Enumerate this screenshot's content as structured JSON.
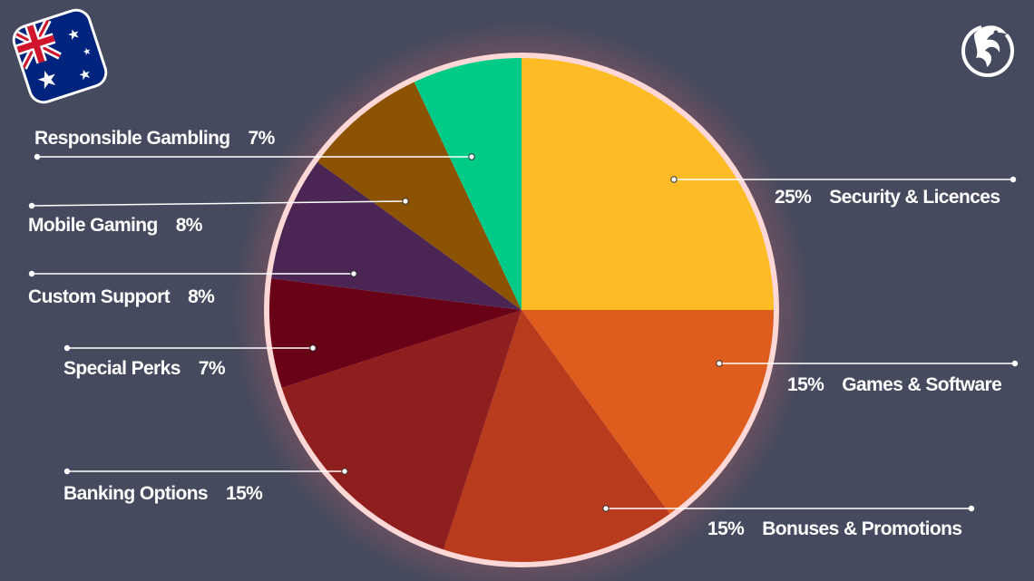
{
  "chart_data": {
    "type": "pie",
    "slices": [
      {
        "label": "Security & Licences",
        "value": 25,
        "pct_label": "25%",
        "color": "#fdbb26"
      },
      {
        "label": "Games & Software",
        "value": 15,
        "pct_label": "15%",
        "color": "#de5c1e"
      },
      {
        "label": "Bonuses & Promotions",
        "value": 15,
        "pct_label": "15%",
        "color": "#b83b1e"
      },
      {
        "label": "Banking Options",
        "value": 15,
        "pct_label": "15%",
        "color": "#8f1e1e"
      },
      {
        "label": "Special Perks",
        "value": 7,
        "pct_label": "7%",
        "color": "#690117"
      },
      {
        "label": "Custom Support",
        "value": 8,
        "pct_label": "8%",
        "color": "#4b2655"
      },
      {
        "label": "Mobile Gaming",
        "value": 8,
        "pct_label": "8%",
        "color": "#8b5201"
      },
      {
        "label": "Responsible Gambling",
        "value": 7,
        "pct_label": "7%",
        "color": "#00ca88"
      }
    ],
    "start": "12 o'clock",
    "direction": "clockwise",
    "rim_color": "#fdd8d6",
    "background": "#464a5e"
  },
  "header": {
    "flag_icon": "australia-flag-icon",
    "brand_logo": "dragon-logo-icon"
  }
}
